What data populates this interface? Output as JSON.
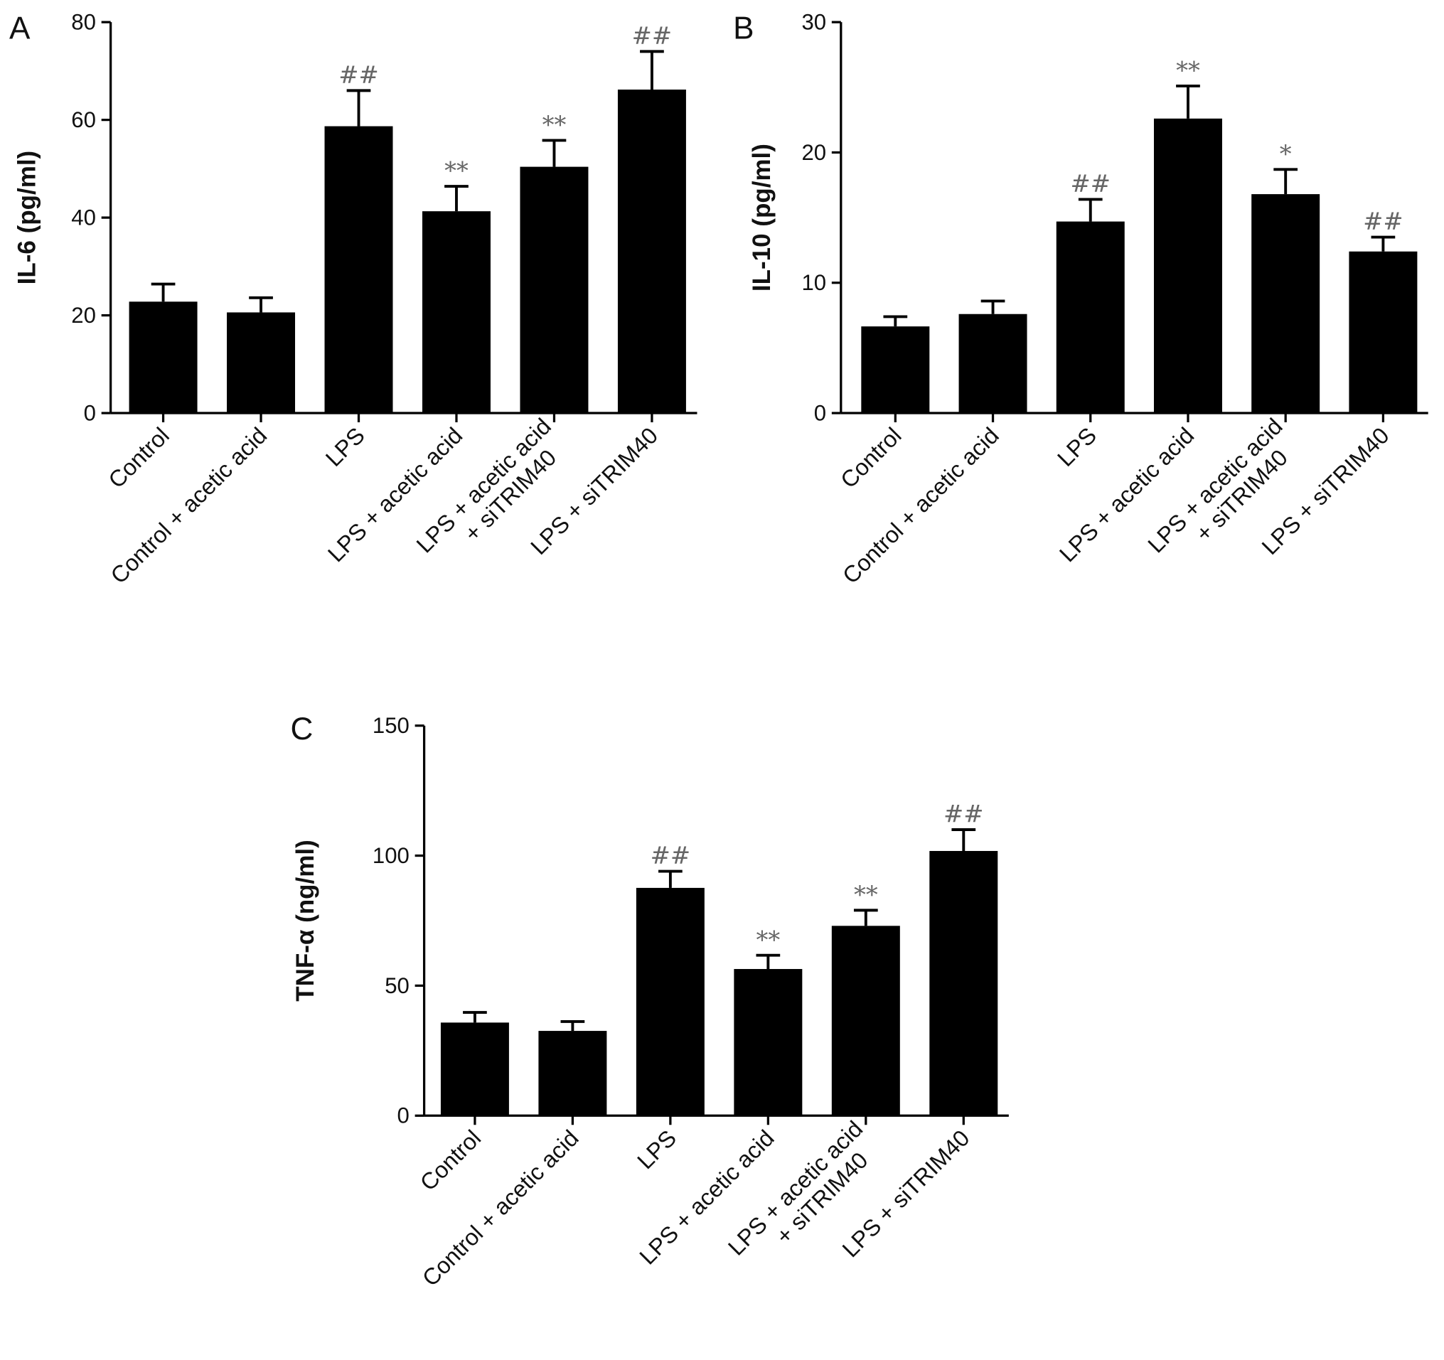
{
  "chart_data": [
    {
      "type": "bar",
      "panel": "A",
      "ylabel": "IL-6 (pg/ml)",
      "ylim": [
        0,
        80
      ],
      "yticks": [
        0,
        20,
        40,
        60,
        80
      ],
      "categories": [
        "Control",
        "Control + acetic acid",
        "LPS",
        "LPS + acetic acid",
        "LPS + acetic acid + siTRIM40",
        "LPS + siTRIM40"
      ],
      "values": [
        22.8,
        20.6,
        58.7,
        41.3,
        50.4,
        66.2
      ],
      "error_upper": [
        26.4,
        23.6,
        66.0,
        46.4,
        55.8,
        74.0
      ],
      "annotations": [
        "",
        "",
        "##",
        "**",
        "**",
        "##"
      ]
    },
    {
      "type": "bar",
      "panel": "B",
      "ylabel": "IL-10  (pg/ml)",
      "ylim": [
        0,
        30
      ],
      "yticks": [
        0,
        10,
        20,
        30
      ],
      "categories": [
        "Control",
        "Control + acetic acid",
        "LPS",
        "LPS + acetic acid",
        "LPS + acetic acid + siTRIM40",
        "LPS + siTRIM40"
      ],
      "values": [
        6.65,
        7.6,
        14.7,
        22.6,
        16.8,
        12.4
      ],
      "error_upper": [
        7.4,
        8.6,
        16.4,
        25.1,
        18.7,
        13.5
      ],
      "annotations": [
        "",
        "",
        "##",
        "**",
        "*",
        "##"
      ]
    },
    {
      "type": "bar",
      "panel": "C",
      "ylabel": "TNF-α (ng/ml)",
      "ylim": [
        0,
        150
      ],
      "yticks": [
        0,
        50,
        100,
        150
      ],
      "categories": [
        "Control",
        "Control + acetic acid",
        "LPS",
        "LPS + acetic acid",
        "LPS + acetic acid + siTRIM40",
        "LPS + siTRIM40"
      ],
      "values": [
        35.8,
        32.6,
        87.6,
        56.4,
        73.0,
        101.8
      ],
      "error_upper": [
        39.7,
        36.2,
        94.0,
        61.7,
        79.0,
        110.0
      ],
      "annotations": [
        "",
        "",
        "##",
        "**",
        "**",
        "##"
      ]
    }
  ],
  "colors": {
    "bar": "#000000",
    "annotation": "#666666"
  }
}
